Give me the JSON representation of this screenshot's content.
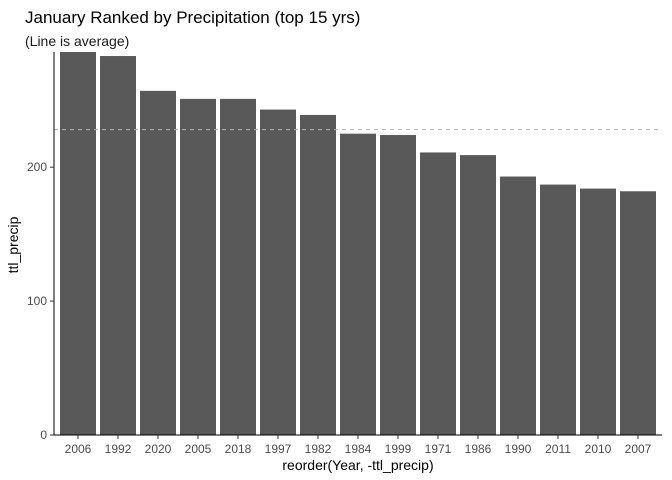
{
  "chart_data": {
    "type": "bar",
    "title": "January Ranked by Precipitation (top 15 yrs)",
    "subtitle": "(Line is average)",
    "xlabel": "reorder(Year, -ttl_precip)",
    "ylabel": "ttl_precip",
    "categories": [
      "2006",
      "1992",
      "2020",
      "2005",
      "2018",
      "1997",
      "1982",
      "1984",
      "1999",
      "1971",
      "1986",
      "1990",
      "2011",
      "2010",
      "2007"
    ],
    "values": [
      286,
      283,
      257,
      251,
      251,
      243,
      239,
      225,
      224,
      211,
      209,
      193,
      187,
      184,
      182
    ],
    "average": 228,
    "ylim": [
      0,
      286
    ],
    "yticks": [
      0,
      100,
      200
    ],
    "grid": false,
    "colors": {
      "bar": "#595959",
      "average_line": "#b3b3b3"
    }
  }
}
